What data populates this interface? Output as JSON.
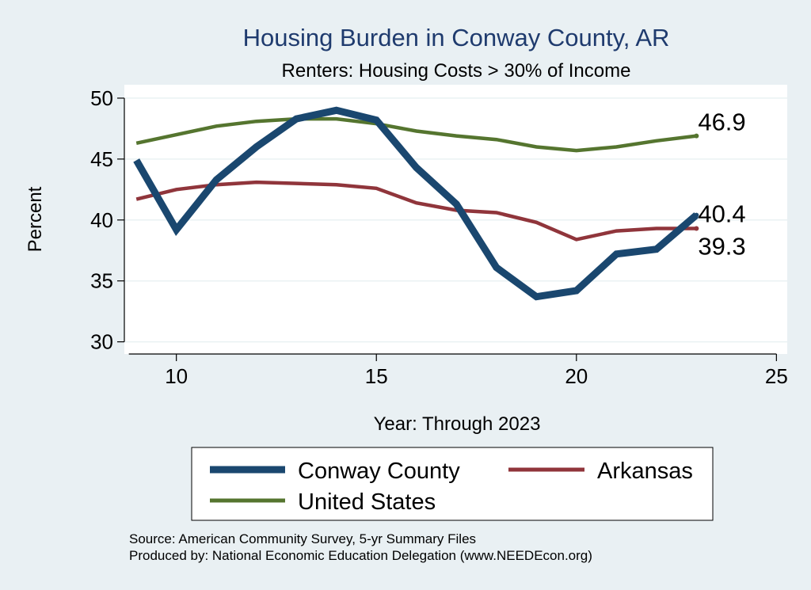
{
  "chart_data": {
    "type": "line",
    "title": "Housing Burden in Conway County, AR",
    "subtitle": "Renters: Housing Costs > 30% of Income",
    "xlabel": "Year: Through 2023",
    "ylabel": "Percent",
    "xlim": [
      9,
      25
    ],
    "ylim": [
      30,
      50
    ],
    "xticks": [
      10,
      15,
      20,
      25
    ],
    "yticks": [
      30,
      35,
      40,
      45,
      50
    ],
    "grid": true,
    "series": [
      {
        "name": "Conway County",
        "color": "#1a476f",
        "x": [
          9,
          10,
          11,
          12,
          13,
          14,
          15,
          16,
          17,
          18,
          19,
          20,
          21,
          22,
          23
        ],
        "values": [
          44.9,
          39.2,
          43.3,
          46.0,
          48.3,
          49.0,
          48.2,
          44.3,
          41.3,
          36.1,
          33.7,
          34.2,
          37.2,
          37.6,
          40.4
        ],
        "end_label": "40.4"
      },
      {
        "name": "Arkansas",
        "color": "#90353b",
        "x": [
          9,
          10,
          11,
          12,
          13,
          14,
          15,
          16,
          17,
          18,
          19,
          20,
          21,
          22,
          23
        ],
        "values": [
          41.7,
          42.5,
          42.9,
          43.1,
          43.0,
          42.9,
          42.6,
          41.4,
          40.8,
          40.6,
          39.8,
          38.4,
          39.1,
          39.3,
          39.3
        ],
        "end_label": "39.3"
      },
      {
        "name": "United States",
        "color": "#55752f",
        "x": [
          9,
          10,
          11,
          12,
          13,
          14,
          15,
          16,
          17,
          18,
          19,
          20,
          21,
          22,
          23
        ],
        "values": [
          46.3,
          47.0,
          47.7,
          48.1,
          48.3,
          48.3,
          47.9,
          47.3,
          46.9,
          46.6,
          46.0,
          45.7,
          46.0,
          46.5,
          46.9
        ],
        "end_label": "46.9"
      }
    ],
    "legend_position": "bottom",
    "source_lines": [
      "Source: American Community Survey, 5-yr Summary Files",
      "Produced by: National Economic Education Delegation (www.NEEDEcon.org)"
    ]
  }
}
